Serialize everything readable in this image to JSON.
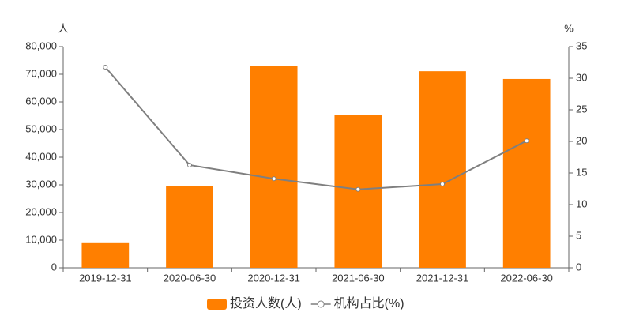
{
  "chart_data": {
    "type": "bar_line",
    "y_axis_title": "人",
    "y2_axis_title": "%",
    "categories": [
      "2019-12-31",
      "2020-06-30",
      "2020-12-31",
      "2021-06-30",
      "2021-12-31",
      "2022-06-30"
    ],
    "series": [
      {
        "name": "投资人数(人)",
        "type": "bar",
        "color": "#ff7f00",
        "values": [
          9200,
          29700,
          72900,
          55400,
          71100,
          68300
        ]
      },
      {
        "name": "机构占比(%)",
        "type": "line",
        "axis": "y2",
        "color": "#7f7f7f",
        "values": [
          31.75,
          16.25,
          14.1,
          12.4,
          13.25,
          20.1
        ]
      }
    ],
    "ylim": [
      0,
      80000
    ],
    "yticks": [
      0,
      {
        "value": 10000,
        "label": "10,000"
      },
      {
        "value": 20000,
        "label": "20,000"
      },
      {
        "value": 30000,
        "label": "30,000"
      },
      {
        "value": 40000,
        "label": "40,000"
      },
      {
        "value": 50000,
        "label": "50,000"
      },
      {
        "value": 60000,
        "label": "60,000"
      },
      {
        "value": 70000,
        "label": "70,000"
      },
      {
        "value": 80000,
        "label": "80,000"
      }
    ],
    "y2lim": [
      0,
      35
    ],
    "y2ticks": [
      0,
      5,
      10,
      15,
      20,
      25,
      30,
      35
    ],
    "legend": "bottom"
  }
}
